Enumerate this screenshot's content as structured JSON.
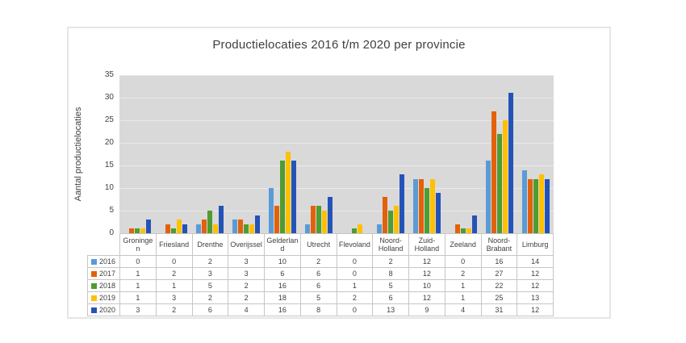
{
  "chart_data": {
    "type": "bar",
    "title": "Productielocaties 2016 t/m 2020 per provincie",
    "xlabel": "",
    "ylabel": "Aantal productielocaties",
    "ylim": [
      0,
      35
    ],
    "ytick_step": 5,
    "grid": true,
    "legend_position": "data-table-left",
    "plot_background": "#d9d9d9",
    "categories": [
      "Groningen",
      "Friesland",
      "Drenthe",
      "Overijssel",
      "Gelderland",
      "Utrecht",
      "Flevoland",
      "Noord-Holland",
      "Zuid-Holland",
      "Zeeland",
      "Noord-Brabant",
      "Limburg"
    ],
    "category_labels": [
      "Groninge\nn",
      "Friesland",
      "Drenthe",
      "Overijssel",
      "Gelderlan\nd",
      "Utrecht",
      "Flevoland",
      "Noord-\nHolland",
      "Zuid-\nHolland",
      "Zeeland",
      "Noord-\nBrabant",
      "Limburg"
    ],
    "series": [
      {
        "name": "2016",
        "color": "#5b9bd5",
        "values": [
          0,
          0,
          2,
          3,
          10,
          2,
          0,
          2,
          12,
          0,
          16,
          14
        ]
      },
      {
        "name": "2017",
        "color": "#e3610b",
        "values": [
          1,
          2,
          3,
          3,
          6,
          6,
          0,
          8,
          12,
          2,
          27,
          12
        ]
      },
      {
        "name": "2018",
        "color": "#4f9c32",
        "values": [
          1,
          1,
          5,
          2,
          16,
          6,
          1,
          5,
          10,
          1,
          22,
          12
        ]
      },
      {
        "name": "2019",
        "color": "#ffc000",
        "values": [
          1,
          3,
          2,
          2,
          18,
          5,
          2,
          6,
          12,
          1,
          25,
          13
        ]
      },
      {
        "name": "2020",
        "color": "#2453b8",
        "values": [
          3,
          2,
          6,
          4,
          16,
          8,
          0,
          13,
          9,
          4,
          31,
          12
        ]
      }
    ]
  }
}
